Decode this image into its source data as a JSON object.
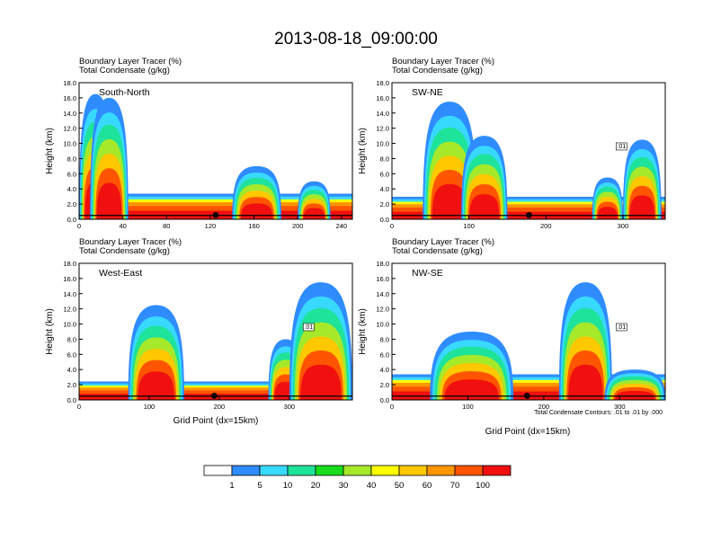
{
  "figure": {
    "title": "2013-08-18_09:00:00",
    "x_axis_label": "Grid Point (dx=15km)",
    "contour_note": "Total Condensate Contours: .01 to .01 by .000"
  },
  "chart_data": [
    {
      "type": "heatmap",
      "panel_label": "South-North",
      "header_line1": "Boundary Layer Tracer   (%)",
      "header_line2": "Total Condensate   (g/kg)",
      "ylabel": "Height (km)",
      "xlim": [
        0,
        250
      ],
      "ylim": [
        0,
        18
      ],
      "xticks": [
        "0",
        "40",
        "80",
        "120",
        "160",
        "200",
        "240"
      ],
      "xtick_values": [
        0,
        40,
        80,
        120,
        160,
        200,
        240
      ],
      "yticks": [
        "0.0",
        "2.0",
        "4.0",
        "6.0",
        "8.0",
        "10.0",
        "12.0",
        "14.0",
        "16.0",
        "18.0"
      ],
      "marker_x": 125,
      "contour_label": "",
      "plumes": [
        {
          "x": [
            0,
            30
          ],
          "top": 16.5
        },
        {
          "x": [
            10,
            45
          ],
          "top": 16.0
        },
        {
          "x": [
            140,
            185
          ],
          "top": 7.0
        },
        {
          "x": [
            200,
            230
          ],
          "top": 5.0
        }
      ],
      "boundary_layer_top": 2.5
    },
    {
      "type": "heatmap",
      "panel_label": "SW-NE",
      "header_line1": "Boundary Layer Tracer   (%)",
      "header_line2": "Total Condensate   (g/kg)",
      "ylabel": "Height (km)",
      "xlim": [
        0,
        355
      ],
      "ylim": [
        0,
        18
      ],
      "xticks": [
        "0",
        "100",
        "200",
        "300"
      ],
      "xtick_values": [
        0,
        100,
        200,
        300
      ],
      "yticks": [
        "0.0",
        "2.0",
        "4.0",
        "6.0",
        "8.0",
        "10.0",
        "12.0",
        "14.0",
        "16.0",
        "18.0"
      ],
      "marker_x": 178,
      "contour_label": ".01",
      "plumes": [
        {
          "x": [
            40,
            110
          ],
          "top": 15.5
        },
        {
          "x": [
            90,
            150
          ],
          "top": 11.0
        },
        {
          "x": [
            260,
            300
          ],
          "top": 5.5
        },
        {
          "x": [
            300,
            350
          ],
          "top": 10.5
        }
      ],
      "boundary_layer_top": 2.2
    },
    {
      "type": "heatmap",
      "panel_label": "West-East",
      "header_line1": "Boundary Layer Tracer   (%)",
      "header_line2": "Total Condensate   (g/kg)",
      "ylabel": "Height (km)",
      "xlim": [
        0,
        390
      ],
      "ylim": [
        0,
        18
      ],
      "xticks": [
        "0",
        "100",
        "200",
        "300"
      ],
      "xtick_values": [
        0,
        100,
        200,
        300
      ],
      "yticks": [
        "0.0",
        "2.0",
        "4.0",
        "6.0",
        "8.0",
        "10.0",
        "12.0",
        "14.0",
        "16.0",
        "18.0"
      ],
      "marker_x": 193,
      "contour_label": ".01",
      "plumes": [
        {
          "x": [
            70,
            150
          ],
          "top": 12.5
        },
        {
          "x": [
            270,
            320
          ],
          "top": 8.0
        },
        {
          "x": [
            300,
            390
          ],
          "top": 15.5
        }
      ],
      "boundary_layer_top": 1.8
    },
    {
      "type": "heatmap",
      "panel_label": "NW-SE",
      "header_line1": "Boundary Layer Tracer   (%)",
      "header_line2": "Total Condensate   (g/kg)",
      "ylabel": "Height (km)",
      "xlim": [
        0,
        360
      ],
      "ylim": [
        0,
        18
      ],
      "xticks": [
        "0",
        "100",
        "200",
        "300"
      ],
      "xtick_values": [
        0,
        100,
        200,
        300
      ],
      "yticks": [
        "0.0",
        "2.0",
        "4.0",
        "6.0",
        "8.0",
        "10.0",
        "12.0",
        "14.0",
        "16.0",
        "18.0"
      ],
      "marker_x": 178,
      "contour_label": ".01",
      "plumes": [
        {
          "x": [
            50,
            160
          ],
          "top": 9.0
        },
        {
          "x": [
            220,
            290
          ],
          "top": 15.5
        },
        {
          "x": [
            280,
            360
          ],
          "top": 4.0
        }
      ],
      "boundary_layer_top": 2.5
    }
  ],
  "colorbar": {
    "labels": [
      "1",
      "5",
      "10",
      "20",
      "30",
      "40",
      "50",
      "60",
      "70",
      "100"
    ],
    "colors": [
      "#ffffff",
      "#2f8cff",
      "#38d9ff",
      "#1ee39a",
      "#18dc1c",
      "#a6e82a",
      "#ffff00",
      "#ffc800",
      "#ff9600",
      "#ff5500",
      "#f01010"
    ]
  }
}
